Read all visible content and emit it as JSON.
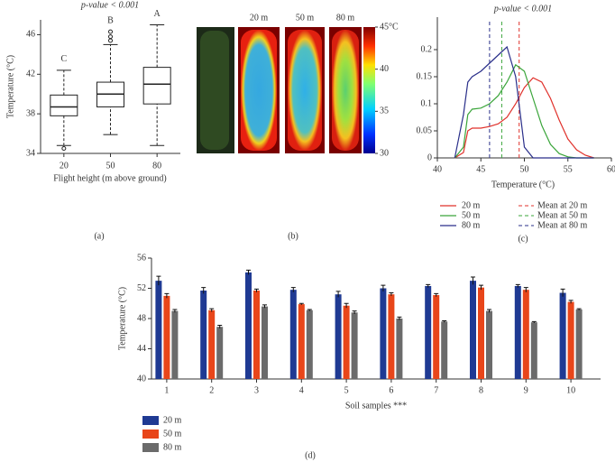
{
  "chart_data": [
    {
      "type": "box",
      "title": "p-value < 0.001",
      "x_label": "Flight height (m above ground)",
      "y_label": "Temperature (°C)",
      "panel_label": "(a)",
      "categories": [
        "20",
        "50",
        "80"
      ],
      "annotations": [
        "C",
        "B",
        "A"
      ],
      "boxes": [
        {
          "whislo": 34.8,
          "q1": 37.8,
          "med": 38.7,
          "q3": 39.9,
          "whishi": 42.4,
          "fliers": [
            34.5
          ]
        },
        {
          "whislo": 35.9,
          "q1": 38.7,
          "med": 40.0,
          "q3": 41.2,
          "whishi": 45.0,
          "fliers": [
            45.4,
            45.8,
            46.3
          ]
        },
        {
          "whislo": 34.8,
          "q1": 39.0,
          "med": 41.0,
          "q3": 42.7,
          "whishi": 47.0,
          "fliers": []
        }
      ],
      "ylim": [
        34,
        47.5
      ],
      "yticks": [
        34,
        38,
        42,
        46
      ]
    },
    {
      "type": "image",
      "panel_label": "(b)",
      "image_labels": [
        "20 m",
        "50 m",
        "80 m"
      ],
      "clim": [
        30,
        45
      ],
      "cticks": [
        30,
        35,
        40,
        {
          "value": 45,
          "label": "45°C"
        }
      ]
    },
    {
      "type": "line",
      "title": "p-value < 0.001",
      "x_label": "Temperature (°C)",
      "panel_label": "(c)",
      "x": [
        42,
        43,
        43.5,
        44,
        45,
        46,
        47,
        48,
        49,
        50,
        51,
        52,
        53,
        54,
        55,
        56,
        57,
        58
      ],
      "series": [
        {
          "name": "20 m",
          "color": "#e0312b",
          "values": [
            0,
            0.01,
            0.05,
            0.055,
            0.055,
            0.058,
            0.063,
            0.075,
            0.1,
            0.13,
            0.148,
            0.14,
            0.11,
            0.07,
            0.035,
            0.015,
            0.005,
            0
          ]
        },
        {
          "name": "50 m",
          "color": "#3aa53a",
          "values": [
            0,
            0.02,
            0.08,
            0.09,
            0.092,
            0.1,
            0.115,
            0.14,
            0.172,
            0.16,
            0.11,
            0.06,
            0.025,
            0.008,
            0.002,
            0,
            0,
            0
          ]
        },
        {
          "name": "80 m",
          "color": "#2a2f8a",
          "values": [
            0,
            0.08,
            0.14,
            0.15,
            0.16,
            0.175,
            0.19,
            0.205,
            0.15,
            0.02,
            0,
            0,
            0,
            0,
            0,
            0,
            0,
            0
          ]
        }
      ],
      "mean_lines": [
        {
          "name": "Mean at 20 m",
          "color": "#e0312b",
          "value": 49.4
        },
        {
          "name": "Mean at 50 m",
          "color": "#3aa53a",
          "value": 47.4
        },
        {
          "name": "Mean at 80 m",
          "color": "#2a2f8a",
          "value": 46.0
        }
      ],
      "xlim": [
        40,
        60
      ],
      "xticks": [
        40,
        45,
        50,
        55,
        60
      ],
      "ylim": [
        0,
        0.26
      ],
      "yticks": [
        0,
        0.05,
        0.1,
        0.15,
        0.2
      ]
    },
    {
      "type": "bar",
      "x_label": "Soil samples ***",
      "y_label": "Temperature (°C)",
      "panel_label": "(d)",
      "categories": [
        "1",
        "2",
        "3",
        "4",
        "5",
        "6",
        "7",
        "8",
        "9",
        "10"
      ],
      "series": [
        {
          "name": "20 m",
          "color": "#1f3a93",
          "values": [
            53.0,
            51.7,
            54.1,
            51.8,
            51.2,
            52.0,
            52.3,
            53.0,
            52.3,
            51.4
          ],
          "errors": [
            0.6,
            0.4,
            0.3,
            0.3,
            0.4,
            0.4,
            0.2,
            0.5,
            0.2,
            0.5
          ]
        },
        {
          "name": "50 m",
          "color": "#e8461a",
          "values": [
            51.0,
            49.1,
            51.7,
            49.9,
            49.7,
            51.2,
            51.1,
            52.1,
            51.8,
            50.2
          ],
          "errors": [
            0.3,
            0.2,
            0.2,
            0.1,
            0.3,
            0.2,
            0.2,
            0.3,
            0.3,
            0.2
          ]
        },
        {
          "name": "80 m",
          "color": "#6b6b6b",
          "values": [
            49.0,
            46.9,
            49.6,
            49.1,
            48.8,
            48.0,
            47.6,
            49.0,
            47.5,
            49.2
          ],
          "errors": [
            0.2,
            0.2,
            0.2,
            0.1,
            0.2,
            0.2,
            0.1,
            0.2,
            0.1,
            0.1
          ]
        }
      ],
      "ylim": [
        40,
        56
      ],
      "yticks": [
        40,
        44,
        48,
        52,
        56
      ]
    }
  ]
}
